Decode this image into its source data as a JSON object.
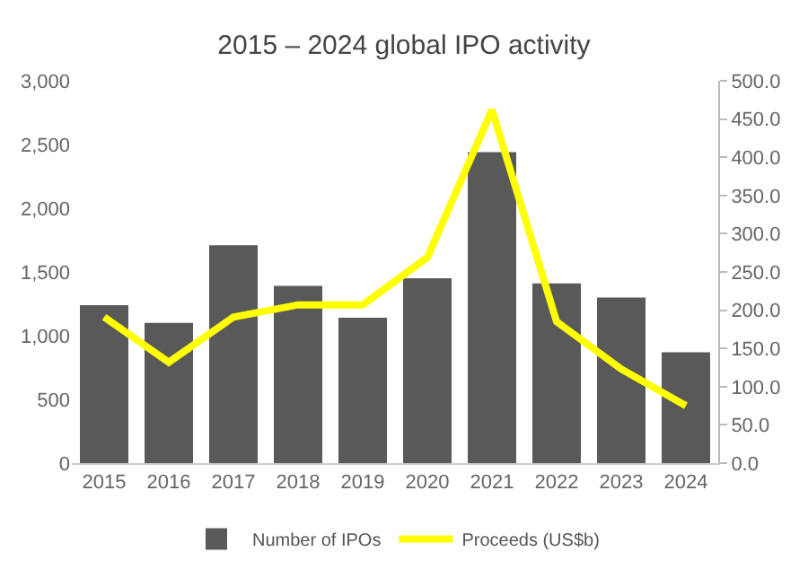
{
  "chart_data": {
    "type": "bar",
    "title": "2015 – 2024 global IPO activity",
    "categories": [
      "2015",
      "2016",
      "2017",
      "2018",
      "2019",
      "2020",
      "2021",
      "2022",
      "2023",
      "2024"
    ],
    "series": [
      {
        "name": "Number of IPOs",
        "color": "#595959",
        "values": [
          1240,
          1100,
          1710,
          1390,
          1140,
          1450,
          2440,
          1410,
          1300,
          870
        ]
      },
      {
        "name": "Proceeds (US$b)",
        "type": "line",
        "axis": "y2",
        "color": "#ffff00",
        "values": [
          191,
          132,
          191,
          207,
          207,
          269,
          462,
          185,
          123,
          75
        ]
      }
    ],
    "ylim": [
      0,
      3000
    ],
    "yticks": [
      {
        "value": 0,
        "label": "0"
      },
      {
        "value": 500,
        "label": "500"
      },
      {
        "value": 1000,
        "label": "1,000"
      },
      {
        "value": 1500,
        "label": "1,500"
      },
      {
        "value": 2000,
        "label": "2,000"
      },
      {
        "value": 2500,
        "label": "2,500"
      },
      {
        "value": 3000,
        "label": "3,000"
      }
    ],
    "y2lim": [
      0,
      500
    ],
    "y2ticks": [
      {
        "value": 0,
        "label": "0.0"
      },
      {
        "value": 50,
        "label": "50.0"
      },
      {
        "value": 100,
        "label": "100.0"
      },
      {
        "value": 150,
        "label": "150.0"
      },
      {
        "value": 200,
        "label": "200.0"
      },
      {
        "value": 250,
        "label": "250.0"
      },
      {
        "value": 300,
        "label": "300.0"
      },
      {
        "value": 350,
        "label": "350.0"
      },
      {
        "value": 400,
        "label": "400.0"
      },
      {
        "value": 450,
        "label": "450.0"
      },
      {
        "value": 500,
        "label": "500.0"
      }
    ],
    "grid": false,
    "legend": "bottom",
    "marker": "none"
  }
}
